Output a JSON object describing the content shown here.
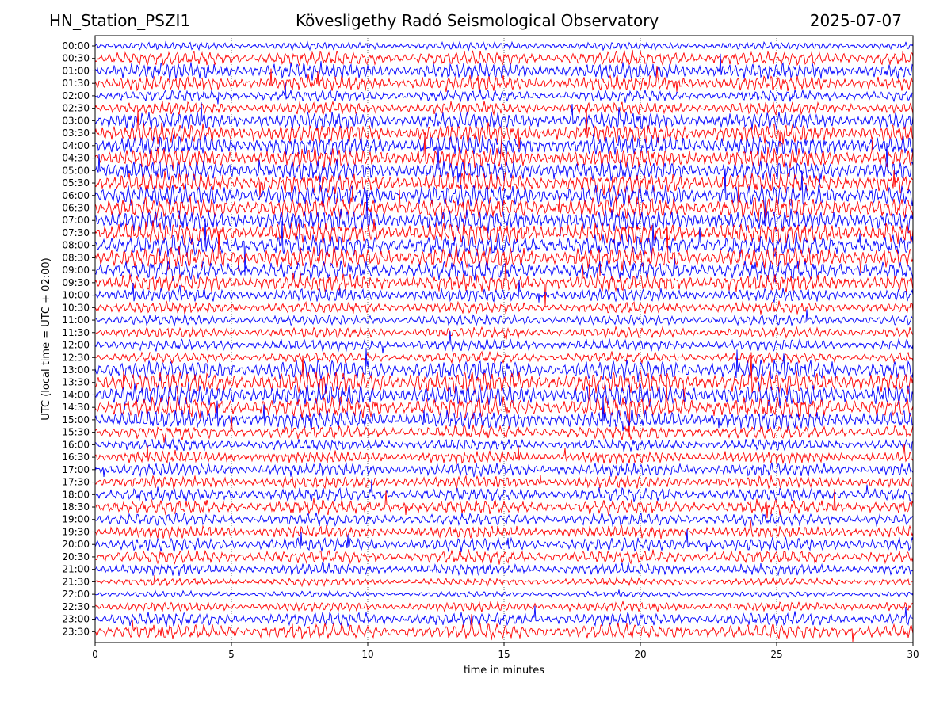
{
  "header": {
    "station": "HN_Station_PSZI1",
    "observatory": "Kövesligethy Radó Seismological Observatory",
    "date": "2025-07-07"
  },
  "chart_data": {
    "type": "line",
    "title": "Kövesligethy Radó Seismological Observatory",
    "xlabel": "time in minutes",
    "ylabel": "UTC (local time = UTC + 02:00)",
    "xlim": [
      0,
      30
    ],
    "x_ticks": [
      "0",
      "5",
      "10",
      "15",
      "20",
      "25",
      "30"
    ],
    "x_tick_values": [
      0,
      5,
      10,
      15,
      20,
      25,
      30
    ],
    "grid": "vertical dotted at x ticks",
    "trace_labels": [
      "00:00",
      "00:30",
      "01:00",
      "01:30",
      "02:00",
      "02:30",
      "03:00",
      "03:30",
      "04:00",
      "04:30",
      "05:00",
      "05:30",
      "06:00",
      "06:30",
      "07:00",
      "07:30",
      "08:00",
      "08:30",
      "09:00",
      "09:30",
      "10:00",
      "10:30",
      "11:00",
      "11:30",
      "12:00",
      "12:30",
      "13:00",
      "13:30",
      "14:00",
      "14:30",
      "15:00",
      "15:30",
      "16:00",
      "16:30",
      "17:00",
      "17:30",
      "18:00",
      "18:30",
      "19:00",
      "19:30",
      "20:00",
      "20:30",
      "21:00",
      "21:30",
      "22:00",
      "22:30",
      "23:00",
      "23:30"
    ],
    "trace_colors": [
      "#0000ff",
      "#ff0000"
    ],
    "relative_activity": [
      0.25,
      0.6,
      0.7,
      0.65,
      0.45,
      0.5,
      0.75,
      0.85,
      0.9,
      0.9,
      0.9,
      0.95,
      1.0,
      1.0,
      1.0,
      1.0,
      1.0,
      1.0,
      0.9,
      0.8,
      0.55,
      0.45,
      0.4,
      0.4,
      0.45,
      0.4,
      0.9,
      1.0,
      1.0,
      1.0,
      0.85,
      0.55,
      0.45,
      0.5,
      0.55,
      0.5,
      0.55,
      0.6,
      0.5,
      0.5,
      0.55,
      0.55,
      0.45,
      0.25,
      0.15,
      0.35,
      0.55,
      0.65
    ]
  }
}
